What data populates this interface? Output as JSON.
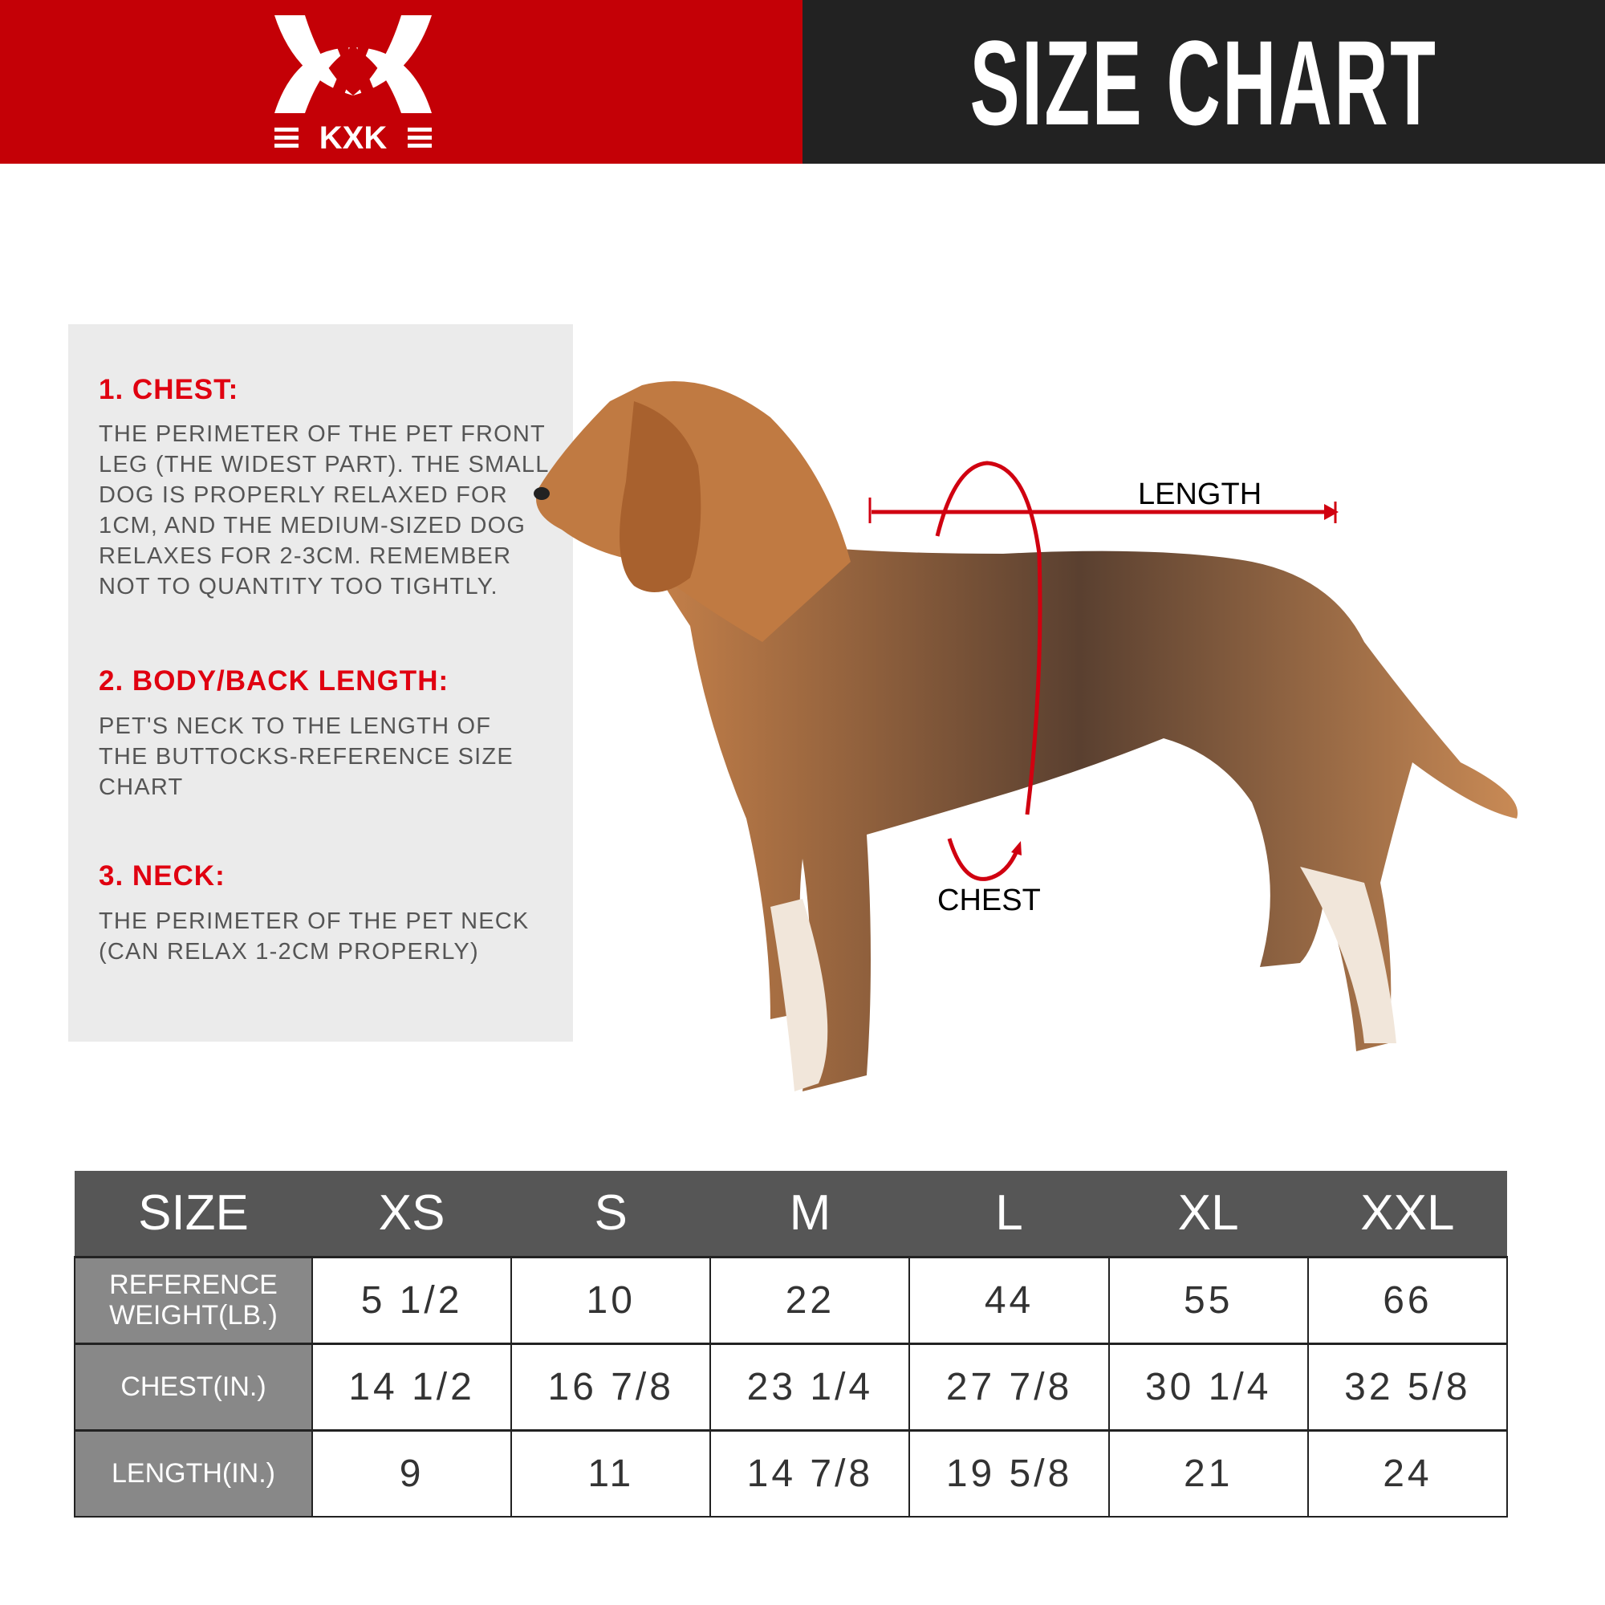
{
  "header": {
    "brand": "KXK",
    "title": "SIZE CHART",
    "colors": {
      "red": "#c40006",
      "dark": "#222222"
    }
  },
  "guide": {
    "chest": {
      "heading": "1. CHEST:",
      "text": "THE PERIMETER OF THE PET FRONT\nLEG (THE WIDEST PART). THE SMALL\nDOG IS PROPERLY RELAXED FOR\n1CM, AND THE MEDIUM-SIZED DOG\nRELAXES FOR 2-3CM. REMEMBER\nNOT TO QUANTITY TOO TIGHTLY."
    },
    "length": {
      "heading": "2. BODY/BACK LENGTH:",
      "text": "PET'S NECK TO THE LENGTH OF\nTHE BUTTOCKS-REFERENCE SIZE\nCHART"
    },
    "neck": {
      "heading": "3. NECK:",
      "text": "THE PERIMETER OF THE PET NECK\n (CAN RELAX 1-2CM PROPERLY)"
    }
  },
  "diagram": {
    "length_label": "LENGTH",
    "chest_label": "CHEST"
  },
  "table": {
    "headers": [
      "SIZE",
      "XS",
      "S",
      "M",
      "L",
      "XL",
      "XXL"
    ],
    "rows": [
      {
        "label": "REFERENCE WEIGHT(LB.)",
        "values": [
          "5 1/2",
          "10",
          "22",
          "44",
          "55",
          "66"
        ]
      },
      {
        "label": "CHEST(IN.)",
        "values": [
          "14 1/2",
          "16 7/8",
          "23 1/4",
          "27 7/8",
          "30 1/4",
          "32 5/8"
        ]
      },
      {
        "label": "LENGTH(IN.)",
        "values": [
          "9",
          "11",
          "14 7/8",
          "19 5/8",
          "21",
          "24"
        ]
      }
    ]
  }
}
